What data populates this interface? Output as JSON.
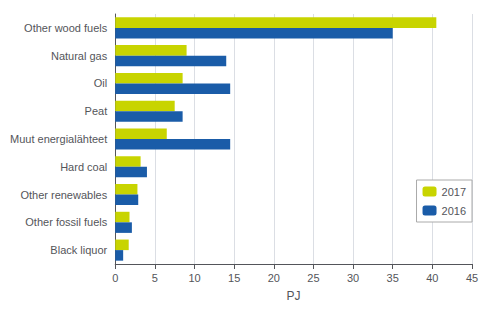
{
  "chart_data": {
    "type": "bar",
    "orientation": "horizontal",
    "categories": [
      "Other wood fuels",
      "Natural gas",
      "Oil",
      "Peat",
      "Muut energialähteet",
      "Hard coal",
      "Other renewables",
      "Other fossil fuels",
      "Black liquor"
    ],
    "series": [
      {
        "name": "2017",
        "color": "#c8d400",
        "values": [
          40.5,
          9.0,
          8.5,
          7.5,
          6.5,
          3.2,
          2.8,
          1.8,
          1.7
        ]
      },
      {
        "name": "2016",
        "color": "#1a5ca8",
        "values": [
          35.0,
          14.0,
          14.5,
          8.5,
          14.5,
          4.0,
          2.9,
          2.1,
          1.0
        ]
      }
    ],
    "xlabel": "PJ",
    "xlim": [
      0,
      45
    ],
    "xticks": [
      0,
      5,
      10,
      15,
      20,
      25,
      30,
      35,
      40,
      45
    ],
    "grid": true,
    "legend": "right"
  }
}
